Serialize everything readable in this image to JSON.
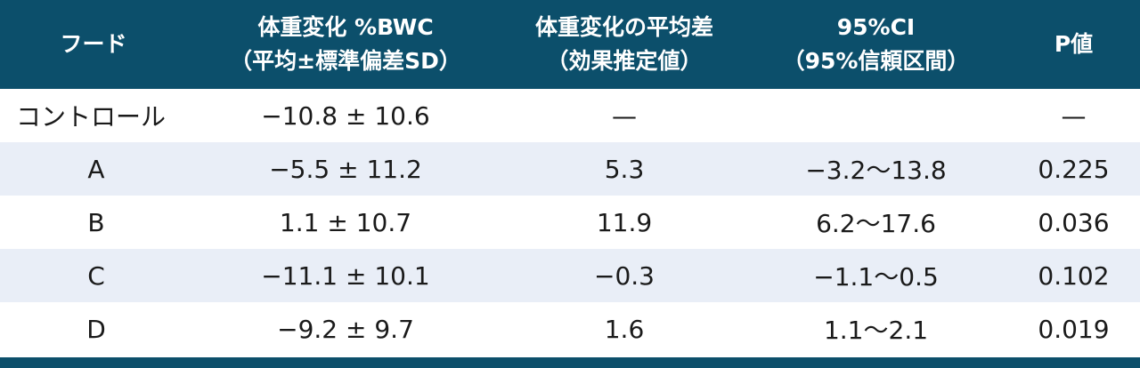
{
  "table": {
    "header": {
      "food": "フード",
      "bwc_line1": "体重変化 %BWC",
      "bwc_line2": "（平均±標準偏差SD）",
      "diff_line1": "体重変化の平均差",
      "diff_line2": "（効果推定値）",
      "ci_line1": "95%CI",
      "ci_line2": "（95%信頼区間）",
      "p": "P値"
    },
    "rows": [
      {
        "food": "コントロール",
        "bwc": "−10.8 ± 10.6",
        "diff": "—",
        "ci": "",
        "p": "—"
      },
      {
        "food": "A",
        "bwc": "−5.5 ± 11.2",
        "diff": "5.3",
        "ci": "−3.2〜13.8",
        "p": "0.225"
      },
      {
        "food": "B",
        "bwc": "1.1 ± 10.7",
        "diff": "11.9",
        "ci": "6.2〜17.6",
        "p": "0.036"
      },
      {
        "food": "C",
        "bwc": "−11.1 ± 10.1",
        "diff": "−0.3",
        "ci": "−1.1〜0.5",
        "p": "0.102"
      },
      {
        "food": "D",
        "bwc": "−9.2 ± 9.7",
        "diff": "1.6",
        "ci": "1.1〜2.1",
        "p": "0.019"
      }
    ]
  },
  "colors": {
    "header_bg": "#0c4f6b",
    "stripe": "#e9eef7"
  }
}
